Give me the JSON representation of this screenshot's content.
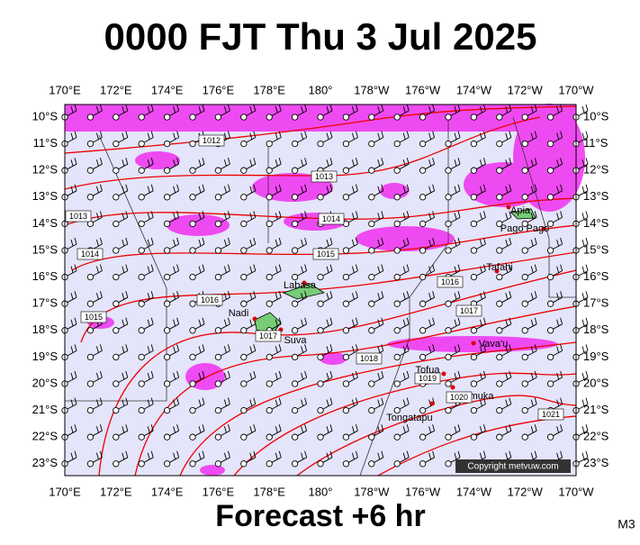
{
  "title": "0000 FJT Thu 3 Jul 2025",
  "footer": "Forecast +6 hr",
  "model": "M3",
  "copyright": "Copyright metvuw.com",
  "longitudes": [
    "170°E",
    "172°E",
    "174°E",
    "176°E",
    "178°E",
    "180°",
    "178°W",
    "176°W",
    "174°W",
    "172°W",
    "170°W"
  ],
  "latitudes": [
    "10°S",
    "11°S",
    "12°S",
    "13°S",
    "14°S",
    "15°S",
    "16°S",
    "17°S",
    "18°S",
    "19°S",
    "20°S",
    "21°S",
    "22°S",
    "23°S"
  ],
  "isobar_labels": [
    1012,
    1013,
    1013,
    1014,
    1014,
    1015,
    1015,
    1016,
    1016,
    1017,
    1017,
    1018,
    1019,
    1020,
    1021
  ],
  "places": [
    "Apia",
    "Pago Pago",
    "Tafahi",
    "Labasa",
    "Nadi",
    "Suva",
    "Vava'u",
    "Tofua",
    "Nomuka",
    "Tongatapu"
  ]
}
